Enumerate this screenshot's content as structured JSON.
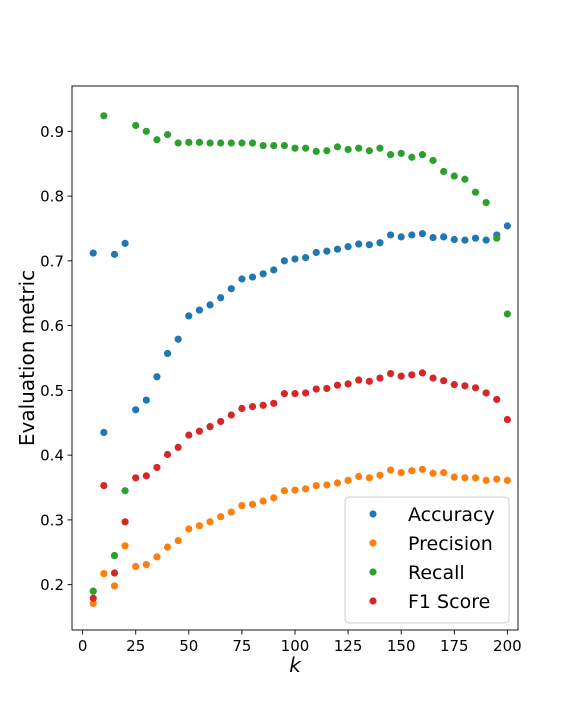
{
  "chart_data": {
    "type": "scatter",
    "title": "",
    "xlabel": "k",
    "ylabel": "Evaluation metric",
    "xlim": [
      -5,
      205
    ],
    "ylim": [
      0.13,
      0.97
    ],
    "xticks": [
      0,
      25,
      50,
      75,
      100,
      125,
      150,
      175,
      200
    ],
    "yticks": [
      0.2,
      0.3,
      0.4,
      0.5,
      0.6,
      0.7,
      0.8,
      0.9
    ],
    "grid": false,
    "legend_position": "bottom-right",
    "x": [
      5,
      10,
      15,
      20,
      25,
      30,
      35,
      40,
      45,
      50,
      55,
      60,
      65,
      70,
      75,
      80,
      85,
      90,
      95,
      100,
      105,
      110,
      115,
      120,
      125,
      130,
      135,
      140,
      145,
      150,
      155,
      160,
      165,
      170,
      175,
      180,
      185,
      190,
      195,
      200
    ],
    "series": [
      {
        "name": "Accuracy",
        "color": "#1f77b4",
        "values": [
          0.712,
          0.435,
          0.71,
          0.727,
          0.47,
          0.485,
          0.521,
          0.557,
          0.579,
          0.615,
          0.624,
          0.632,
          0.643,
          0.657,
          0.672,
          0.675,
          0.68,
          0.686,
          0.7,
          0.703,
          0.705,
          0.713,
          0.715,
          0.718,
          0.722,
          0.726,
          0.725,
          0.728,
          0.74,
          0.737,
          0.74,
          0.742,
          0.736,
          0.737,
          0.733,
          0.732,
          0.735,
          0.732,
          0.74,
          0.754
        ]
      },
      {
        "name": "Precision",
        "color": "#ff7f0e",
        "values": [
          0.171,
          0.217,
          0.198,
          0.26,
          0.228,
          0.231,
          0.243,
          0.258,
          0.268,
          0.286,
          0.291,
          0.297,
          0.305,
          0.312,
          0.322,
          0.324,
          0.329,
          0.334,
          0.345,
          0.346,
          0.348,
          0.353,
          0.354,
          0.357,
          0.361,
          0.367,
          0.365,
          0.369,
          0.377,
          0.373,
          0.376,
          0.378,
          0.372,
          0.373,
          0.366,
          0.365,
          0.365,
          0.361,
          0.363,
          0.361
        ]
      },
      {
        "name": "Recall",
        "color": "#2ca02c",
        "values": [
          0.19,
          0.924,
          0.245,
          0.345,
          0.909,
          0.9,
          0.887,
          0.895,
          0.882,
          0.883,
          0.883,
          0.882,
          0.882,
          0.882,
          0.882,
          0.882,
          0.878,
          0.878,
          0.878,
          0.874,
          0.874,
          0.869,
          0.87,
          0.876,
          0.872,
          0.874,
          0.87,
          0.874,
          0.864,
          0.866,
          0.86,
          0.864,
          0.855,
          0.838,
          0.831,
          0.826,
          0.806,
          0.79,
          0.735,
          0.618
        ]
      },
      {
        "name": "F1 Score",
        "color": "#d62728",
        "values": [
          0.179,
          0.353,
          0.218,
          0.297,
          0.365,
          0.368,
          0.381,
          0.401,
          0.412,
          0.431,
          0.437,
          0.444,
          0.452,
          0.462,
          0.472,
          0.475,
          0.477,
          0.48,
          0.495,
          0.495,
          0.496,
          0.502,
          0.503,
          0.508,
          0.51,
          0.516,
          0.514,
          0.519,
          0.526,
          0.522,
          0.524,
          0.527,
          0.519,
          0.515,
          0.509,
          0.507,
          0.504,
          0.496,
          0.486,
          0.455
        ]
      }
    ]
  }
}
